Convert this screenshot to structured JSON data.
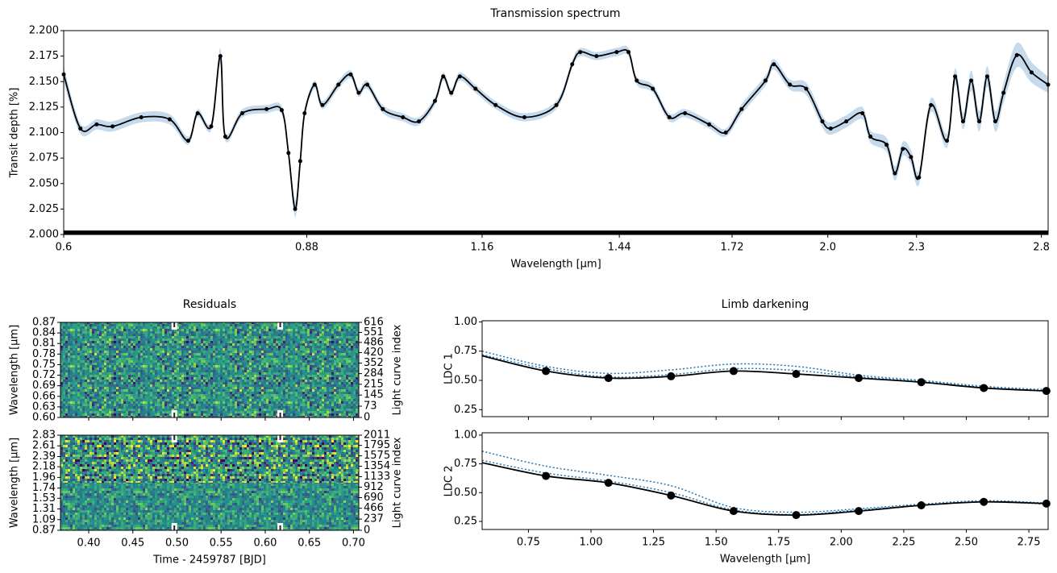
{
  "chart_data": [
    {
      "type": "line",
      "title": "Transmission spectrum",
      "xlabel": "Wavelength [μm]",
      "ylabel": "Transit depth [%]",
      "xscale": "log",
      "xlim": [
        0.6,
        2.83
      ],
      "xticks": [
        0.6,
        0.88,
        1.16,
        1.44,
        1.72,
        {
          "value": 2.0,
          "label": "2.0"
        },
        2.3,
        2.8
      ],
      "ylim": [
        2.0,
        2.2
      ],
      "yticks": [
        {
          "value": 2.0,
          "label": "2.000"
        },
        {
          "value": 2.025,
          "label": "2.025"
        },
        {
          "value": 2.05,
          "label": "2.050"
        },
        {
          "value": 2.075,
          "label": "2.075"
        },
        {
          "value": 2.1,
          "label": "2.100"
        },
        {
          "value": 2.125,
          "label": "2.125"
        },
        {
          "value": 2.15,
          "label": "2.150"
        },
        {
          "value": 2.175,
          "label": "2.175"
        },
        {
          "value": 2.2,
          "label": "2.200"
        }
      ],
      "series": [
        {
          "color": "#000000",
          "band_color": "#a6c6e4",
          "marker": true,
          "line": true,
          "x": [
            0.6,
            0.616,
            0.632,
            0.648,
            0.678,
            0.709,
            0.73,
            0.741,
            0.757,
            0.768,
            0.774,
            0.795,
            0.826,
            0.846,
            0.855,
            0.864,
            0.871,
            0.877,
            0.891,
            0.902,
            0.925,
            0.943,
            0.955,
            0.968,
            0.992,
            1.024,
            1.05,
            1.077,
            1.091,
            1.105,
            1.12,
            1.148,
            1.185,
            1.24,
            1.304,
            1.337,
            1.354,
            1.389,
            1.434,
            1.461,
            1.48,
            1.518,
            1.558,
            1.597,
            1.659,
            1.703,
            1.746,
            1.813,
            1.837,
            1.884,
            1.933,
            1.983,
            2.009,
            2.059,
            2.112,
            2.139,
            2.194,
            2.223,
            2.251,
            2.28,
            2.309,
            2.353,
            2.413,
            2.444,
            2.475,
            2.507,
            2.539,
            2.571,
            2.604,
            2.638,
            2.694,
            2.757,
            2.83
          ],
          "values": [
            2.157,
            2.104,
            2.108,
            2.106,
            2.115,
            2.113,
            2.092,
            2.119,
            2.106,
            2.175,
            2.096,
            2.119,
            2.123,
            2.122,
            2.08,
            2.025,
            2.072,
            2.119,
            2.147,
            2.127,
            2.147,
            2.157,
            2.139,
            2.147,
            2.123,
            2.115,
            2.111,
            2.131,
            2.155,
            2.139,
            2.155,
            2.143,
            2.127,
            2.115,
            2.127,
            2.167,
            2.179,
            2.175,
            2.179,
            2.179,
            2.151,
            2.143,
            2.115,
            2.119,
            2.108,
            2.1,
            2.123,
            2.151,
            2.167,
            2.147,
            2.143,
            2.111,
            2.104,
            2.111,
            2.119,
            2.096,
            2.088,
            2.06,
            2.084,
            2.076,
            2.056,
            2.127,
            2.092,
            2.155,
            2.111,
            2.151,
            2.111,
            2.155,
            2.111,
            2.139,
            2.176,
            2.159,
            2.147
          ],
          "errors": [
            0.008,
            0.005,
            0.005,
            0.005,
            0.005,
            0.005,
            0.004,
            0.004,
            0.004,
            0.008,
            0.004,
            0.004,
            0.004,
            0.004,
            0.005,
            0.008,
            0.005,
            0.004,
            0.004,
            0.004,
            0.004,
            0.004,
            0.004,
            0.004,
            0.004,
            0.004,
            0.004,
            0.004,
            0.004,
            0.004,
            0.004,
            0.004,
            0.004,
            0.004,
            0.004,
            0.004,
            0.004,
            0.004,
            0.004,
            0.004,
            0.004,
            0.004,
            0.004,
            0.004,
            0.004,
            0.004,
            0.005,
            0.005,
            0.005,
            0.005,
            0.006,
            0.006,
            0.006,
            0.006,
            0.006,
            0.006,
            0.007,
            0.007,
            0.007,
            0.007,
            0.007,
            0.007,
            0.007,
            0.008,
            0.008,
            0.01,
            0.01,
            0.01,
            0.01,
            0.01,
            0.012,
            0.01,
            0.008
          ]
        }
      ]
    },
    {
      "type": "heatmap",
      "title": "Residuals",
      "ylabel": "Wavelength [μm]",
      "y2label": "Light curve index",
      "colormap": "viridis",
      "contrast": "low",
      "xlim": [
        0.368,
        0.706
      ],
      "xticks": [
        {
          "value": 0.4,
          "label": "0.40"
        },
        0.45,
        {
          "value": 0.5,
          "label": "0.50"
        },
        0.55,
        {
          "value": 0.6,
          "label": "0.60"
        },
        0.65,
        {
          "value": 0.7,
          "label": "0.70"
        }
      ],
      "xtick_labels": false,
      "ylim": [
        0.6,
        0.87
      ],
      "yticks": [
        {
          "value": 0.6,
          "label": "0.60"
        },
        0.63,
        0.66,
        0.69,
        0.72,
        0.75,
        0.78,
        0.81,
        0.84,
        0.87
      ],
      "y2lim": [
        0,
        616
      ],
      "y2ticks": [
        0,
        73,
        145,
        215,
        284,
        352,
        420,
        486,
        551,
        616
      ],
      "markers_x": [
        0.497,
        0.617
      ]
    },
    {
      "type": "heatmap",
      "xlabel": "Time - 2459787 [BJD]",
      "ylabel": "Wavelength [μm]",
      "y2label": "Light curve index",
      "colormap": "viridis",
      "contrast": "high",
      "xlim": [
        0.368,
        0.706
      ],
      "xticks": [
        {
          "value": 0.4,
          "label": "0.40"
        },
        0.45,
        {
          "value": 0.5,
          "label": "0.50"
        },
        0.55,
        {
          "value": 0.6,
          "label": "0.60"
        },
        0.65,
        {
          "value": 0.7,
          "label": "0.70"
        }
      ],
      "xtick_labels": true,
      "ylim": [
        0.87,
        2.83
      ],
      "yticks": [
        0.87,
        1.09,
        1.31,
        1.53,
        1.74,
        1.96,
        2.18,
        2.39,
        2.61,
        2.83
      ],
      "y2lim": [
        0,
        2011
      ],
      "y2ticks": [
        0,
        237,
        466,
        690,
        912,
        1133,
        1354,
        1575,
        1795,
        2011
      ],
      "markers_x": [
        0.497,
        0.617
      ]
    },
    {
      "type": "line",
      "title": "Limb darkening",
      "ylabel": "LDC 1",
      "xlim": [
        0.565,
        2.827
      ],
      "xticks": [
        0.75,
        {
          "value": 1.0,
          "label": "1.00"
        },
        1.25,
        {
          "value": 1.5,
          "label": "1.50"
        },
        1.75,
        {
          "value": 2.0,
          "label": "2.00"
        },
        2.25,
        {
          "value": 2.5,
          "label": "2.50"
        },
        2.75
      ],
      "xtick_labels": false,
      "ylim": [
        0.19,
        1.01
      ],
      "yticks": [
        0.25,
        {
          "value": 0.5,
          "label": "0.50"
        },
        0.75,
        {
          "value": 1.0,
          "label": "1.00"
        }
      ],
      "series": [
        {
          "color": "#1f77b4",
          "style": "dotted",
          "line": true,
          "marker": false,
          "x": [
            0.565,
            0.82,
            1.07,
            1.32,
            1.57,
            1.82,
            2.07,
            2.32,
            2.57,
            2.82
          ],
          "values": [
            0.75,
            0.62,
            0.56,
            0.59,
            0.64,
            0.62,
            0.545,
            0.5,
            0.45,
            0.42
          ]
        },
        {
          "color": "#1f77b4",
          "style": "dotted",
          "line": true,
          "marker": false,
          "x": [
            0.565,
            0.82,
            1.07,
            1.32,
            1.57,
            1.82,
            2.07,
            2.32,
            2.57,
            2.82
          ],
          "values": [
            0.72,
            0.6,
            0.53,
            0.55,
            0.6,
            0.585,
            0.53,
            0.49,
            0.44,
            0.41
          ]
        },
        {
          "color": "#000000",
          "style": "solid",
          "line": true,
          "marker": false,
          "x": [
            0.565,
            0.82,
            1.07,
            1.32,
            1.57,
            1.82,
            2.07,
            2.32,
            2.57,
            2.82
          ],
          "values": [
            0.71,
            0.58,
            0.52,
            0.535,
            0.58,
            0.555,
            0.52,
            0.485,
            0.435,
            0.41
          ]
        },
        {
          "color": "#000000",
          "line": false,
          "marker": true,
          "x": [
            0.82,
            1.07,
            1.32,
            1.57,
            1.82,
            2.07,
            2.32,
            2.57,
            2.82
          ],
          "values": [
            0.58,
            0.52,
            0.535,
            0.58,
            0.555,
            0.52,
            0.485,
            0.435,
            0.41
          ]
        }
      ]
    },
    {
      "type": "line",
      "xlabel": "Wavelength [μm]",
      "ylabel": "LDC 2",
      "xlim": [
        0.565,
        2.827
      ],
      "xticks": [
        0.75,
        {
          "value": 1.0,
          "label": "1.00"
        },
        1.25,
        {
          "value": 1.5,
          "label": "1.50"
        },
        1.75,
        {
          "value": 2.0,
          "label": "2.00"
        },
        2.25,
        {
          "value": 2.5,
          "label": "2.50"
        },
        2.75
      ],
      "xtick_labels": true,
      "ylim": [
        0.18,
        1.02
      ],
      "yticks": [
        0.25,
        {
          "value": 0.5,
          "label": "0.50"
        },
        0.75,
        {
          "value": 1.0,
          "label": "1.00"
        }
      ],
      "series": [
        {
          "color": "#1f77b4",
          "style": "dotted",
          "line": true,
          "marker": false,
          "x": [
            0.565,
            0.82,
            1.07,
            1.32,
            1.57,
            1.82,
            2.07,
            2.32,
            2.57,
            2.82
          ],
          "values": [
            0.86,
            0.73,
            0.65,
            0.56,
            0.37,
            0.33,
            0.36,
            0.4,
            0.43,
            0.41
          ]
        },
        {
          "color": "#1f77b4",
          "style": "dotted",
          "line": true,
          "marker": false,
          "x": [
            0.565,
            0.82,
            1.07,
            1.32,
            1.57,
            1.82,
            2.07,
            2.32,
            2.57,
            2.82
          ],
          "values": [
            0.78,
            0.67,
            0.6,
            0.5,
            0.35,
            0.31,
            0.35,
            0.39,
            0.42,
            0.4
          ]
        },
        {
          "color": "#000000",
          "style": "solid",
          "line": true,
          "marker": false,
          "x": [
            0.565,
            0.82,
            1.07,
            1.32,
            1.57,
            1.82,
            2.07,
            2.32,
            2.57,
            2.82
          ],
          "values": [
            0.76,
            0.645,
            0.585,
            0.475,
            0.34,
            0.305,
            0.34,
            0.39,
            0.42,
            0.405
          ]
        },
        {
          "color": "#000000",
          "line": false,
          "marker": true,
          "x": [
            0.82,
            1.07,
            1.32,
            1.57,
            1.82,
            2.07,
            2.32,
            2.57,
            2.82
          ],
          "values": [
            0.645,
            0.585,
            0.475,
            0.34,
            0.305,
            0.34,
            0.39,
            0.42,
            0.405
          ]
        }
      ]
    }
  ]
}
